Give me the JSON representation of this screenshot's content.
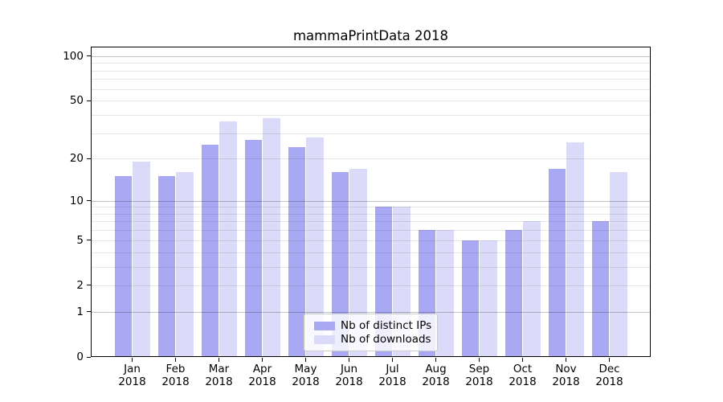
{
  "chart_data": {
    "type": "bar",
    "title": "mammaPrintData 2018",
    "categories": [
      "Jan",
      "Feb",
      "Mar",
      "Apr",
      "May",
      "Jun",
      "Jul",
      "Aug",
      "Sep",
      "Oct",
      "Nov",
      "Dec"
    ],
    "category_year": "2018",
    "series": [
      {
        "name": "Nb of distinct IPs",
        "color": "#a9a9f3",
        "values": [
          15,
          15,
          25,
          27,
          24,
          16,
          9,
          6,
          5,
          6,
          17,
          7
        ]
      },
      {
        "name": "Nb of downloads",
        "color": "#dbdbf9",
        "values": [
          19,
          16,
          36,
          38,
          28,
          17,
          9,
          6,
          5,
          7,
          26,
          16
        ]
      }
    ],
    "yscale": "log1p",
    "ylim": [
      0,
      116
    ],
    "y_ticks": [
      0,
      1,
      2,
      5,
      10,
      20,
      50,
      100
    ],
    "grid_minor": [
      2,
      3,
      4,
      5,
      6,
      7,
      8,
      9,
      20,
      30,
      40,
      50,
      60,
      70,
      80,
      90
    ],
    "grid_major": [
      1,
      10,
      100
    ],
    "legend_position": "lower center",
    "colors": {
      "grid_minor": "#e7e7e7",
      "grid_major": "#c2c2c2",
      "axis": "#000000",
      "background": "#ffffff",
      "text": "#000000"
    }
  }
}
